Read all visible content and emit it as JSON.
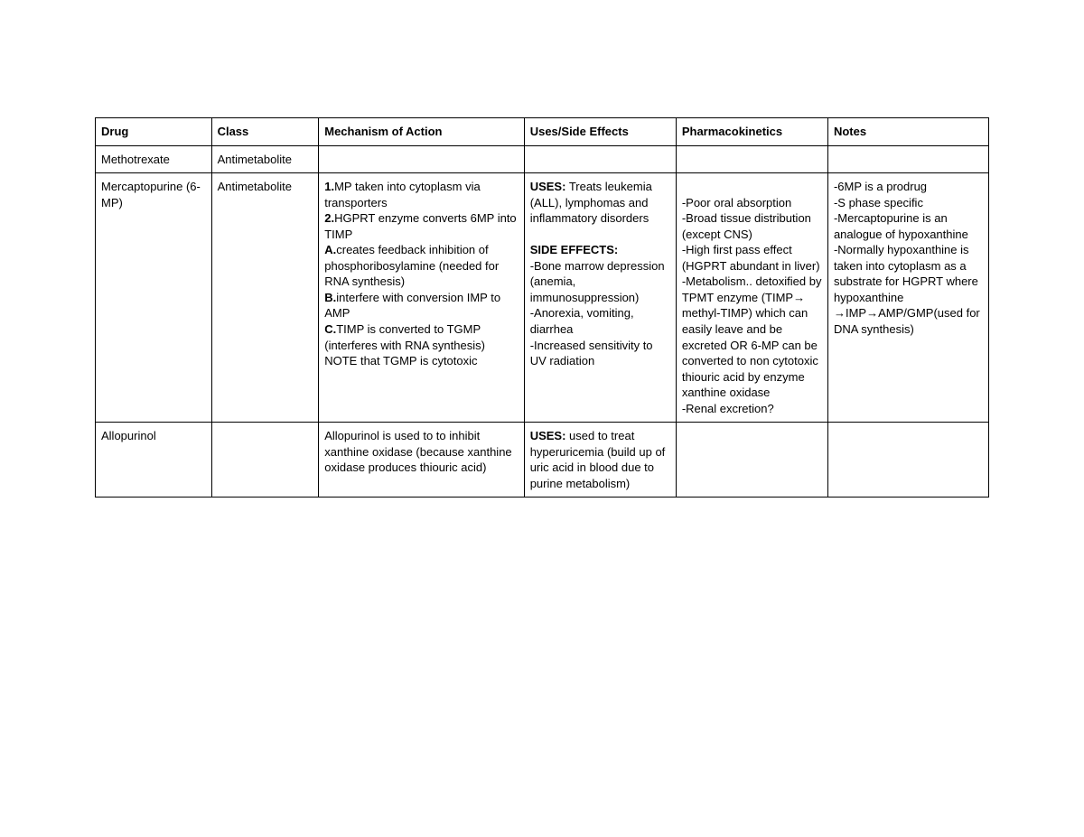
{
  "table": {
    "columns": [
      "Drug",
      "Class",
      "Mechanism of Action",
      "Uses/Side Effects",
      "Pharmacokinetics",
      "Notes"
    ],
    "rows": [
      {
        "drug": "Methotrexate",
        "class": "Antimetabolite",
        "mechanism": [],
        "uses": [],
        "pk": [],
        "notes": []
      },
      {
        "drug": "Mercaptopurine (6-MP)",
        "class": "Antimetabolite",
        "mechanism": [
          {
            "bold": "1.",
            "text": "MP taken into cytoplasm via transporters"
          },
          {
            "bold": "2.",
            "text": "HGPRT enzyme converts 6MP into TIMP"
          },
          {
            "bold": "A.",
            "text": "creates feedback inhibition of phosphoribosylamine (needed for RNA synthesis)"
          },
          {
            "bold": "B.",
            "text": "interfere with conversion IMP to AMP"
          },
          {
            "bold": "C.",
            "text": "TIMP is converted to TGMP (interferes with RNA synthesis) NOTE that TGMP is cytotoxic"
          }
        ],
        "uses": [
          {
            "bold": "USES:",
            "text": " Treats leukemia (ALL), lymphomas and inflammatory disorders"
          },
          {
            "bold": "",
            "text": ""
          },
          {
            "bold": "SIDE EFFECTS:",
            "text": ""
          },
          {
            "bold": "",
            "text": "-Bone marrow depression (anemia, immunosuppression)"
          },
          {
            "bold": "",
            "text": "-Anorexia, vomiting, diarrhea"
          },
          {
            "bold": "",
            "text": "-Increased sensitivity to UV radiation"
          }
        ],
        "pk": [
          {
            "bold": "",
            "text": ""
          },
          {
            "bold": "",
            "text": "-Poor oral absorption"
          },
          {
            "bold": "",
            "text": "-Broad tissue distribution (except CNS)"
          },
          {
            "bold": "",
            "text": "-High first pass effect (HGPRT abundant in liver)"
          },
          {
            "bold": "",
            "text": "-Metabolism.. detoxified by TPMT enzyme (TIMP→ methyl-TIMP) which can easily leave and be excreted OR 6-MP can be converted to non cytotoxic thiouric acid by enzyme xanthine oxidase"
          },
          {
            "bold": "",
            "text": "-Renal excretion?"
          }
        ],
        "notes": [
          {
            "bold": "",
            "text": "-6MP is a prodrug"
          },
          {
            "bold": "",
            "text": "-S phase specific"
          },
          {
            "bold": "",
            "text": "-Mercaptopurine is an analogue of hypoxanthine"
          },
          {
            "bold": "",
            "text": "-Normally hypoxanthine is taken into cytoplasm as a substrate for HGPRT where hypoxanthine →IMP→AMP/GMP(used for DNA synthesis)"
          }
        ]
      },
      {
        "drug": "Allopurinol",
        "class": "",
        "mechanism": [
          {
            "bold": "",
            "text": "Allopurinol is used to to inhibit xanthine oxidase (because xanthine oxidase produces thiouric acid)"
          }
        ],
        "uses": [
          {
            "bold": "USES:",
            "text": " used to treat hyperuricemia (build up of uric acid in blood due to purine metabolism)"
          }
        ],
        "pk": [],
        "notes": []
      }
    ],
    "styling": {
      "border_color": "#000000",
      "border_width": 1.5,
      "background_color": "#ffffff",
      "text_color": "#000000",
      "font_family": "Arial",
      "header_fontsize": 13,
      "body_fontsize": 13,
      "col_widths_pct": [
        13,
        12,
        23,
        17,
        17,
        18
      ]
    }
  }
}
